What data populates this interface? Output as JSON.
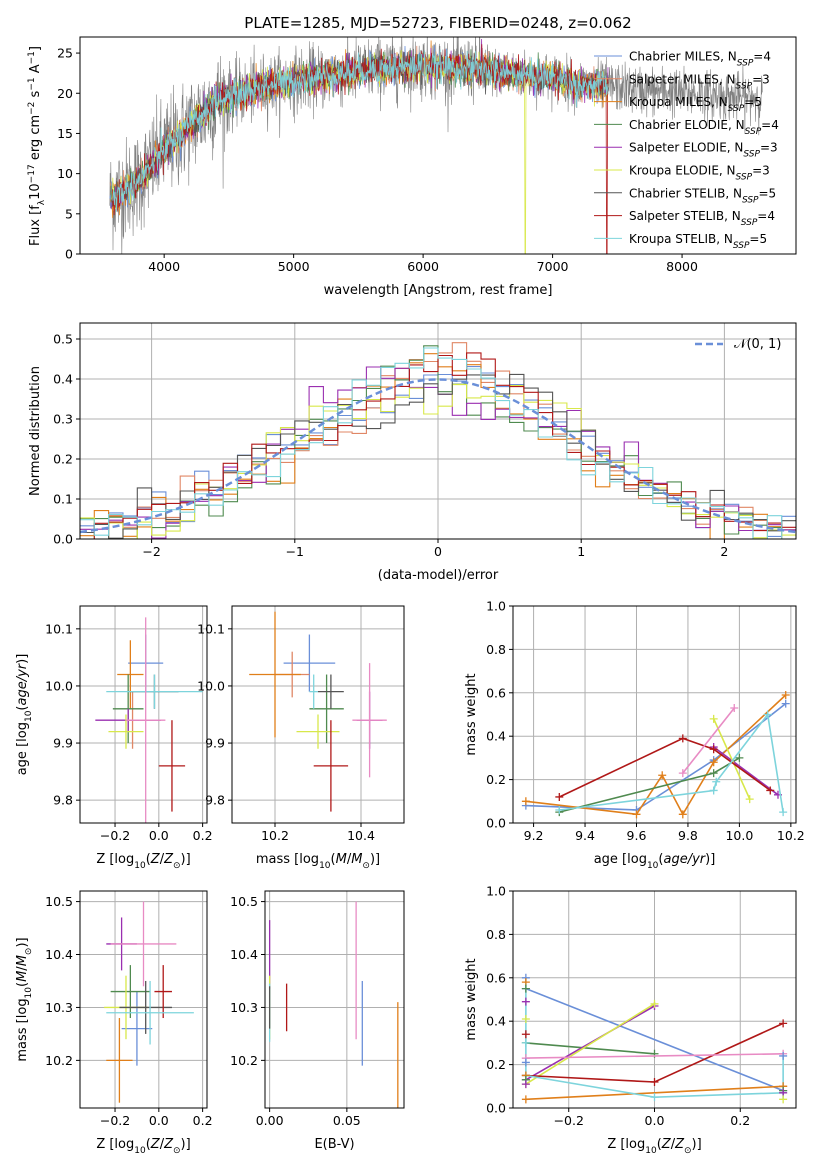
{
  "figure_title": "PLATE=1285, MJD=52723, FIBERID=0248, z=0.062",
  "colors": {
    "Chabrier MILES": "#6a8fd8",
    "Salpeter MILES": "#e08766",
    "Kroupa MILES": "#e07f1a",
    "Chabrier ELODIE": "#4f8a4f",
    "Salpeter ELODIE": "#9a2fb0",
    "Kroupa ELODIE": "#d8e84a",
    "Chabrier STELIB": "#555555",
    "Salpeter STELIB": "#b01818",
    "Kroupa STELIB": "#7dd4dc",
    "data": "#808080",
    "pink": "#e88bc4",
    "gaussian": "#6a8fd8",
    "grid": "#b0b0b0"
  },
  "chart_data": [
    {
      "id": "spectrum",
      "type": "line",
      "xlabel": "wavelength [Angstrom, rest frame]",
      "ylabel": "Flux [f_λ 10^-17 erg cm^-2 s^-1 A^-1]",
      "xlim": [
        3350,
        8880
      ],
      "ylim": [
        0,
        27
      ],
      "xticks": [
        "4000",
        "5000",
        "6000",
        "7000",
        "8000"
      ],
      "yticks": [
        "0",
        "5",
        "10",
        "15",
        "20",
        "25"
      ],
      "grid": false,
      "legend_position": "top-right",
      "continuum_points": [
        [
          3600,
          7
        ],
        [
          3700,
          8
        ],
        [
          3800,
          9
        ],
        [
          3900,
          11
        ],
        [
          4000,
          13
        ],
        [
          4200,
          16
        ],
        [
          4400,
          19
        ],
        [
          4600,
          20
        ],
        [
          4800,
          21
        ],
        [
          5000,
          21.5
        ],
        [
          5200,
          22
        ],
        [
          5400,
          22.5
        ],
        [
          5600,
          23
        ],
        [
          5800,
          23.2
        ],
        [
          6000,
          23.4
        ],
        [
          6200,
          23.2
        ],
        [
          6400,
          23
        ],
        [
          6600,
          22.6
        ],
        [
          6800,
          22.2
        ],
        [
          7000,
          22
        ],
        [
          7200,
          21
        ],
        [
          7400,
          21
        ],
        [
          7600,
          20.5
        ],
        [
          8000,
          20
        ],
        [
          8200,
          19.8
        ],
        [
          8400,
          19.5
        ],
        [
          8600,
          19.5
        ]
      ],
      "data_range": [
        3580,
        8620
      ],
      "model_range": [
        3580,
        7430
      ],
      "dropouts": [
        {
          "x": 6790,
          "series": "Kroupa ELODIE"
        },
        {
          "x": 7420,
          "series": "Salpeter STELIB"
        }
      ],
      "series": [
        {
          "name": "Chabrier MILES, N_SSP=4",
          "key": "Chabrier MILES"
        },
        {
          "name": "Salpeter MILES, N_SSP=3",
          "key": "Salpeter MILES"
        },
        {
          "name": "Kroupa MILES, N_SSP=5",
          "key": "Kroupa MILES"
        },
        {
          "name": "Chabrier ELODIE, N_SSP=4",
          "key": "Chabrier ELODIE"
        },
        {
          "name": "Salpeter ELODIE, N_SSP=3",
          "key": "Salpeter ELODIE"
        },
        {
          "name": "Kroupa ELODIE, N_SSP=3",
          "key": "Kroupa ELODIE"
        },
        {
          "name": "Chabrier STELIB, N_SSP=5",
          "key": "Chabrier STELIB"
        },
        {
          "name": "Salpeter STELIB, N_SSP=4",
          "key": "Salpeter STELIB"
        },
        {
          "name": "Kroupa STELIB, N_SSP=5",
          "key": "Kroupa STELIB"
        }
      ]
    },
    {
      "id": "residuals",
      "type": "histogram",
      "xlabel": "(data-model)/error",
      "ylabel": "Normed distribution",
      "xlim": [
        -2.5,
        2.5
      ],
      "ylim": [
        0,
        0.54
      ],
      "xticks": [
        "−2",
        "−1",
        "0",
        "1",
        "2"
      ],
      "yticks": [
        "0.0",
        "0.1",
        "0.2",
        "0.3",
        "0.4",
        "0.5"
      ],
      "grid": true,
      "legend": "𝒩(0, 1)",
      "legend_position": "top-right",
      "bin_width": 0.1,
      "series_keys": [
        "Chabrier MILES",
        "Salpeter MILES",
        "Kroupa MILES",
        "Chabrier ELODIE",
        "Salpeter ELODIE",
        "Kroupa ELODIE",
        "Chabrier STELIB",
        "Salpeter STELIB",
        "Kroupa STELIB"
      ]
    },
    {
      "id": "age_vs_Z",
      "type": "scatter",
      "xlabel": "Z [log10(Z/Z⊙)]",
      "ylabel": "age [log10(age/yr)]",
      "xlim": [
        -0.36,
        0.22
      ],
      "ylim": [
        9.76,
        10.14
      ],
      "xticks": [
        "−0.2",
        "0.0",
        "0.2"
      ],
      "yticks": [
        "9.8",
        "9.9",
        "10.0",
        "10.1"
      ],
      "grid": true,
      "points": [
        {
          "key": "Chabrier MILES",
          "x": -0.06,
          "y": 10.04,
          "xerr": 0.08,
          "yerr": 0.05
        },
        {
          "key": "Salpeter MILES",
          "x": -0.12,
          "y": 9.94,
          "xerr": 0.03,
          "yerr": 0.05
        },
        {
          "key": "Kroupa MILES",
          "x": -0.13,
          "y": 10.02,
          "xerr": 0.06,
          "yerr": 0.06
        },
        {
          "key": "Chabrier ELODIE",
          "x": -0.14,
          "y": 9.96,
          "xerr": 0.07,
          "yerr": 0.06
        },
        {
          "key": "Salpeter ELODIE",
          "x": -0.14,
          "y": 9.94,
          "xerr": 0.15,
          "yerr": 0.02
        },
        {
          "key": "Kroupa ELODIE",
          "x": -0.15,
          "y": 9.92,
          "xerr": 0.08,
          "yerr": 0.03
        },
        {
          "key": "Chabrier STELIB",
          "x": -0.02,
          "y": 9.99,
          "xerr": 0.11,
          "yerr": 0.03
        },
        {
          "key": "Salpeter STELIB",
          "x": 0.06,
          "y": 9.86,
          "xerr": 0.06,
          "yerr": 0.08
        },
        {
          "key": "Kroupa STELIB",
          "x": -0.02,
          "y": 9.99,
          "xerr": 0.22,
          "yerr": 0.03
        },
        {
          "key": "pink",
          "x": -0.06,
          "y": 9.94,
          "xerr": 0.09,
          "yerr": 0.18
        }
      ]
    },
    {
      "id": "age_vs_mass",
      "type": "scatter",
      "xlabel": "mass [log10(M/M⊙)]",
      "ylabel": "",
      "xlim": [
        10.1,
        10.5
      ],
      "ylim": [
        9.76,
        10.14
      ],
      "xticks": [
        "10.2",
        "10.4"
      ],
      "yticks": [
        "9.8",
        "9.9",
        "10.0",
        "10.1"
      ],
      "grid": true,
      "points": [
        {
          "key": "Chabrier MILES",
          "x": 10.28,
          "y": 10.04,
          "xerr": 0.06,
          "yerr": 0.05
        },
        {
          "key": "Salpeter MILES",
          "x": 10.24,
          "y": 10.02,
          "xerr": 0.04,
          "yerr": 0.04
        },
        {
          "key": "Kroupa MILES",
          "x": 10.2,
          "y": 10.02,
          "xerr": 0.06,
          "yerr": 0.11
        },
        {
          "key": "Chabrier ELODIE",
          "x": 10.32,
          "y": 9.96,
          "xerr": 0.04,
          "yerr": 0.06
        },
        {
          "key": "Salpeter ELODIE",
          "x": 10.42,
          "y": 9.94,
          "xerr": 0.03,
          "yerr": 0.05
        },
        {
          "key": "Kroupa ELODIE",
          "x": 10.3,
          "y": 9.92,
          "xerr": 0.05,
          "yerr": 0.03
        },
        {
          "key": "Chabrier STELIB",
          "x": 10.33,
          "y": 9.99,
          "xerr": 0.03,
          "yerr": 0.03
        },
        {
          "key": "Salpeter STELIB",
          "x": 10.33,
          "y": 9.86,
          "xerr": 0.04,
          "yerr": 0.08
        },
        {
          "key": "Kroupa STELIB",
          "x": 10.29,
          "y": 9.99,
          "xerr": 0.01,
          "yerr": 0.03
        },
        {
          "key": "pink",
          "x": 10.42,
          "y": 9.94,
          "xerr": 0.04,
          "yerr": 0.1
        }
      ]
    },
    {
      "id": "massweight_vs_age",
      "type": "line",
      "xlabel": "age [log10(age/yr)]",
      "ylabel": "mass weight",
      "xlim": [
        9.12,
        10.22
      ],
      "ylim": [
        0,
        1.0
      ],
      "xticks": [
        "9.2",
        "9.4",
        "9.6",
        "9.8",
        "10.0",
        "10.2"
      ],
      "yticks": [
        "0.0",
        "0.2",
        "0.4",
        "0.6",
        "0.8",
        "1.0"
      ],
      "grid": true,
      "series": [
        {
          "key": "Chabrier MILES",
          "x": [
            9.17,
            9.6,
            9.9,
            10.18
          ],
          "y": [
            0.08,
            0.06,
            0.29,
            0.55
          ]
        },
        {
          "key": "Kroupa MILES",
          "x": [
            9.17,
            9.6,
            9.7,
            9.78,
            9.9,
            10.18
          ],
          "y": [
            0.1,
            0.04,
            0.22,
            0.04,
            0.28,
            0.59
          ]
        },
        {
          "key": "Chabrier ELODIE",
          "x": [
            9.3,
            9.9,
            10.0
          ],
          "y": [
            0.05,
            0.23,
            0.3
          ]
        },
        {
          "key": "Salpeter ELODIE",
          "x": [
            9.9,
            10.15
          ],
          "y": [
            0.35,
            0.13
          ]
        },
        {
          "key": "Kroupa ELODIE",
          "x": [
            9.9,
            10.04
          ],
          "y": [
            0.48,
            0.11
          ]
        },
        {
          "key": "Salpeter STELIB",
          "x": [
            9.3,
            9.78,
            9.9,
            10.12
          ],
          "y": [
            0.12,
            0.39,
            0.34,
            0.15
          ]
        },
        {
          "key": "Kroupa STELIB",
          "x": [
            9.3,
            9.9,
            9.91,
            10.11,
            10.17
          ],
          "y": [
            0.06,
            0.15,
            0.19,
            0.5,
            0.05
          ]
        },
        {
          "key": "pink",
          "x": [
            9.78,
            9.98
          ],
          "y": [
            0.23,
            0.53
          ]
        }
      ]
    },
    {
      "id": "mass_vs_Z",
      "type": "scatter",
      "xlabel": "Z [log10(Z/Z⊙)]",
      "ylabel": "mass [log10(M/M⊙)]",
      "xlim": [
        -0.36,
        0.22
      ],
      "ylim": [
        10.11,
        10.52
      ],
      "xticks": [
        "−0.2",
        "0.0",
        "0.2"
      ],
      "yticks": [
        "10.2",
        "10.3",
        "10.4",
        "10.5"
      ],
      "grid": true,
      "points": [
        {
          "key": "Chabrier MILES",
          "x": -0.1,
          "y": 10.26,
          "xerr": 0.07,
          "yerr": 0.07
        },
        {
          "key": "Kroupa MILES",
          "x": -0.18,
          "y": 10.2,
          "xerr": 0.06,
          "yerr": 0.08
        },
        {
          "key": "Chabrier ELODIE",
          "x": -0.13,
          "y": 10.33,
          "xerr": 0.09,
          "yerr": 0.05
        },
        {
          "key": "Salpeter ELODIE",
          "x": -0.17,
          "y": 10.42,
          "xerr": 0.07,
          "yerr": 0.05
        },
        {
          "key": "Kroupa ELODIE",
          "x": -0.15,
          "y": 10.3,
          "xerr": 0.1,
          "yerr": 0.06
        },
        {
          "key": "Chabrier STELIB",
          "x": -0.06,
          "y": 10.3,
          "xerr": 0.12,
          "yerr": 0.05
        },
        {
          "key": "Salpeter STELIB",
          "x": 0.02,
          "y": 10.33,
          "xerr": 0.04,
          "yerr": 0.05
        },
        {
          "key": "Kroupa STELIB",
          "x": -0.04,
          "y": 10.29,
          "xerr": 0.2,
          "yerr": 0.06
        },
        {
          "key": "pink",
          "x": -0.07,
          "y": 10.42,
          "xerr": 0.15,
          "yerr": 0.08
        }
      ]
    },
    {
      "id": "mass_vs_ebv",
      "type": "scatter",
      "xlabel": "E(B-V)",
      "ylabel": "",
      "xlim": [
        -0.003,
        0.087
      ],
      "ylim": [
        10.11,
        10.52
      ],
      "xticks": [
        "0.00",
        "0.05"
      ],
      "yticks": [
        "10.2",
        "10.3",
        "10.4",
        "10.5"
      ],
      "grid": true,
      "points": [
        {
          "key": "Salpeter ELODIE",
          "x": 0.0,
          "y": 10.4,
          "yerr": 0.065
        },
        {
          "key": "Kroupa ELODIE",
          "x": 0.0,
          "y": 10.3,
          "yerr": 0.06
        },
        {
          "key": "Kroupa STELIB",
          "x": 0.0,
          "y": 10.29,
          "yerr": 0.055
        },
        {
          "key": "Chabrier STELIB",
          "x": 0.0,
          "y": 10.3,
          "yerr": 0.04
        },
        {
          "key": "Salpeter STELIB",
          "x": 0.011,
          "y": 10.3,
          "yerr": 0.045
        },
        {
          "key": "pink",
          "x": 0.056,
          "y": 10.37,
          "yerr": 0.13
        },
        {
          "key": "Chabrier MILES",
          "x": 0.06,
          "y": 10.27,
          "yerr": 0.08
        },
        {
          "key": "Kroupa MILES",
          "x": 0.083,
          "y": 10.2,
          "yerr": 0.11
        }
      ]
    },
    {
      "id": "massweight_vs_Z",
      "type": "line",
      "xlabel": "Z [log10(Z/Z⊙)]",
      "ylabel": "mass weight",
      "xlim": [
        -0.33,
        0.33
      ],
      "ylim": [
        0,
        1.0
      ],
      "xticks": [
        "−0.2",
        "0.0",
        "0.2"
      ],
      "yticks": [
        "0.0",
        "0.2",
        "0.4",
        "0.6",
        "0.8",
        "1.0"
      ],
      "grid": true,
      "series": [
        {
          "key": "Chabrier MILES",
          "x": [
            -0.3,
            0.3
          ],
          "y": [
            0.55,
            0.08
          ]
        },
        {
          "key": "Kroupa MILES",
          "x": [
            -0.3,
            0.3
          ],
          "y": [
            0.04,
            0.1
          ]
        },
        {
          "key": "Chabrier ELODIE",
          "x": [
            -0.3,
            0.0
          ],
          "y": [
            0.3,
            0.25
          ]
        },
        {
          "key": "Salpeter ELODIE",
          "x": [
            -0.3,
            0.0
          ],
          "y": [
            0.13,
            0.47
          ]
        },
        {
          "key": "Kroupa ELODIE",
          "x": [
            -0.3,
            0.0
          ],
          "y": [
            0.11,
            0.48
          ]
        },
        {
          "key": "Salpeter STELIB",
          "x": [
            -0.3,
            0.0,
            0.3
          ],
          "y": [
            0.15,
            0.12,
            0.39
          ]
        },
        {
          "key": "Kroupa STELIB",
          "x": [
            -0.3,
            0.0,
            0.3
          ],
          "y": [
            0.15,
            0.05,
            0.07
          ]
        },
        {
          "key": "pink",
          "x": [
            -0.3,
            0.3
          ],
          "y": [
            0.23,
            0.25
          ]
        }
      ],
      "stacked_markers": [
        {
          "x": -0.3,
          "y": [
            0.6,
            0.58,
            0.55,
            0.49,
            0.41,
            0.34,
            0.3,
            0.23,
            0.21,
            0.15,
            0.13,
            0.11
          ]
        },
        {
          "x": 0.3,
          "y": [
            0.24,
            0.1,
            0.08,
            0.07,
            0.04
          ]
        }
      ]
    }
  ]
}
